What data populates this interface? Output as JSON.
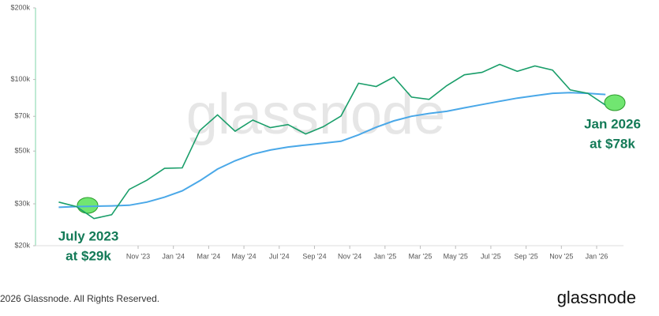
{
  "chart_data": {
    "type": "line",
    "x": [
      "2023-06",
      "2023-07",
      "2023-08",
      "2023-09",
      "2023-10",
      "2023-11",
      "2023-12",
      "2024-01",
      "2024-02",
      "2024-03",
      "2024-04",
      "2024-05",
      "2024-06",
      "2024-07",
      "2024-08",
      "2024-09",
      "2024-10",
      "2024-11",
      "2024-12",
      "2025-01",
      "2025-02",
      "2025-03",
      "2025-04",
      "2025-05",
      "2025-06",
      "2025-07",
      "2025-08",
      "2025-09",
      "2025-10",
      "2025-11",
      "2025-12",
      "2026-01"
    ],
    "series": [
      {
        "color": "#1a9e6a",
        "values": [
          30500,
          29200,
          26000,
          27000,
          34500,
          37700,
          42300,
          42500,
          61000,
          71000,
          60600,
          67500,
          62700,
          64600,
          59000,
          63300,
          70200,
          96400,
          93400,
          102400,
          84300,
          82500,
          94200,
          104600,
          107100,
          115700,
          108200,
          114000,
          109500,
          90400,
          87500,
          78000
        ]
      },
      {
        "color": "#4aa8e8",
        "values": [
          29000,
          29200,
          29300,
          29400,
          29600,
          30500,
          32000,
          34000,
          37500,
          42000,
          45500,
          48500,
          50500,
          52000,
          53000,
          54000,
          55000,
          58500,
          63000,
          67000,
          70000,
          72000,
          73500,
          76000,
          78500,
          81000,
          83500,
          85500,
          87500,
          88000,
          87500,
          86500
        ]
      }
    ],
    "log_scale": true,
    "ylim": [
      20000,
      200000
    ],
    "yticks": [
      {
        "value": 20000,
        "label": "$20k"
      },
      {
        "value": 30000,
        "label": "$30k"
      },
      {
        "value": 50000,
        "label": "$50k"
      },
      {
        "value": 70000,
        "label": "$70k"
      },
      {
        "value": 100000,
        "label": "$100k"
      },
      {
        "value": 200000,
        "label": "$200k"
      }
    ],
    "xticks": [
      {
        "value": "2023-11",
        "label": "Nov '23"
      },
      {
        "value": "2024-01",
        "label": "Jan '24"
      },
      {
        "value": "2024-03",
        "label": "Mar '24"
      },
      {
        "value": "2024-05",
        "label": "May '24"
      },
      {
        "value": "2024-07",
        "label": "Jul '24"
      },
      {
        "value": "2024-09",
        "label": "Sep '24"
      },
      {
        "value": "2024-11",
        "label": "Nov '24"
      },
      {
        "value": "2025-01",
        "label": "Jan '25"
      },
      {
        "value": "2025-03",
        "label": "Mar '25"
      },
      {
        "value": "2025-05",
        "label": "May '25"
      },
      {
        "value": "2025-07",
        "label": "Jul '25"
      },
      {
        "value": "2025-09",
        "label": "Sep '25"
      },
      {
        "value": "2025-11",
        "label": "Nov '25"
      },
      {
        "value": "2026-01",
        "label": "Jan '26"
      }
    ],
    "annotations": [
      "July 2023",
      "at $29k",
      "Jan 2026",
      "at $78k"
    ],
    "watermark": "glassnode",
    "footer": "2026 Glassnode. All Rights Reserved.",
    "logo": "glassnode"
  }
}
